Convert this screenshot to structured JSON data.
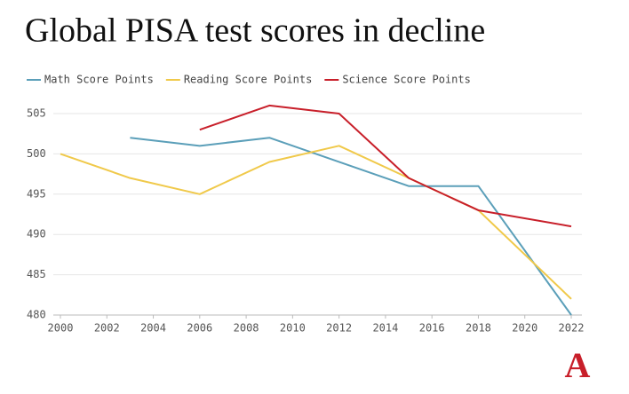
{
  "chart_data": {
    "type": "line",
    "title": "Global PISA test scores in decline",
    "x": [
      2000,
      2003,
      2006,
      2009,
      2012,
      2015,
      2018,
      2022
    ],
    "series": [
      {
        "name": "Math Score Points",
        "color": "#5b9fb9",
        "values": [
          null,
          502,
          501,
          502,
          499,
          496,
          496,
          480
        ]
      },
      {
        "name": "Reading Score Points",
        "color": "#f0c94a",
        "values": [
          500,
          497,
          495,
          499,
          501,
          497,
          493,
          482
        ]
      },
      {
        "name": "Science Score Points",
        "color": "#c81f2a",
        "values": [
          null,
          null,
          503,
          506,
          505,
          497,
          493,
          491
        ]
      }
    ],
    "xlim": [
      2000,
      2022
    ],
    "xticks": [
      2000,
      2002,
      2004,
      2006,
      2008,
      2010,
      2012,
      2014,
      2016,
      2018,
      2020,
      2022
    ],
    "ylim": [
      480,
      506
    ],
    "yticks": [
      480,
      485,
      490,
      495,
      500,
      505
    ],
    "grid": true,
    "legend": "top",
    "logo": "A"
  }
}
